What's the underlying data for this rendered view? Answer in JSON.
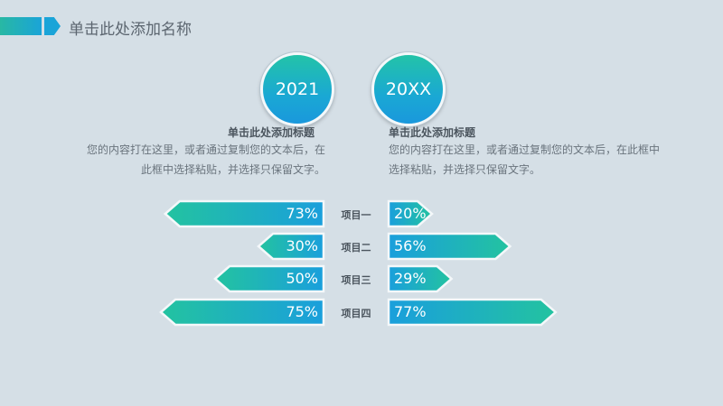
{
  "header": {
    "title": "单击此处添加名称"
  },
  "blocks": [
    {
      "year": "2021",
      "title": "单击此处添加标题",
      "body": "您的内容打在这里，或者通过复制您的文本后，在此框中选择粘贴，并选择只保留文字。"
    },
    {
      "year": "20XX",
      "title": "单击此处添加标题",
      "body": "您的内容打在这里，或者通过复制您的文本后，在此框中选择粘贴，并选择只保留文字。"
    }
  ],
  "colors": {
    "teal": "#23c3a0",
    "blue": "#1aa4d8",
    "text": "#4b555e"
  },
  "chart_data": {
    "type": "bar",
    "categories": [
      "项目一",
      "项目二",
      "项目三",
      "项目四"
    ],
    "series": [
      {
        "values": [
          73,
          30,
          50,
          75
        ],
        "labels": [
          "73%",
          "30%",
          "50%",
          "75%"
        ]
      },
      {
        "values": [
          20,
          56,
          29,
          77
        ],
        "labels": [
          "20%",
          "56%",
          "29%",
          "77%"
        ]
      }
    ],
    "ylim": [
      0,
      100
    ]
  }
}
